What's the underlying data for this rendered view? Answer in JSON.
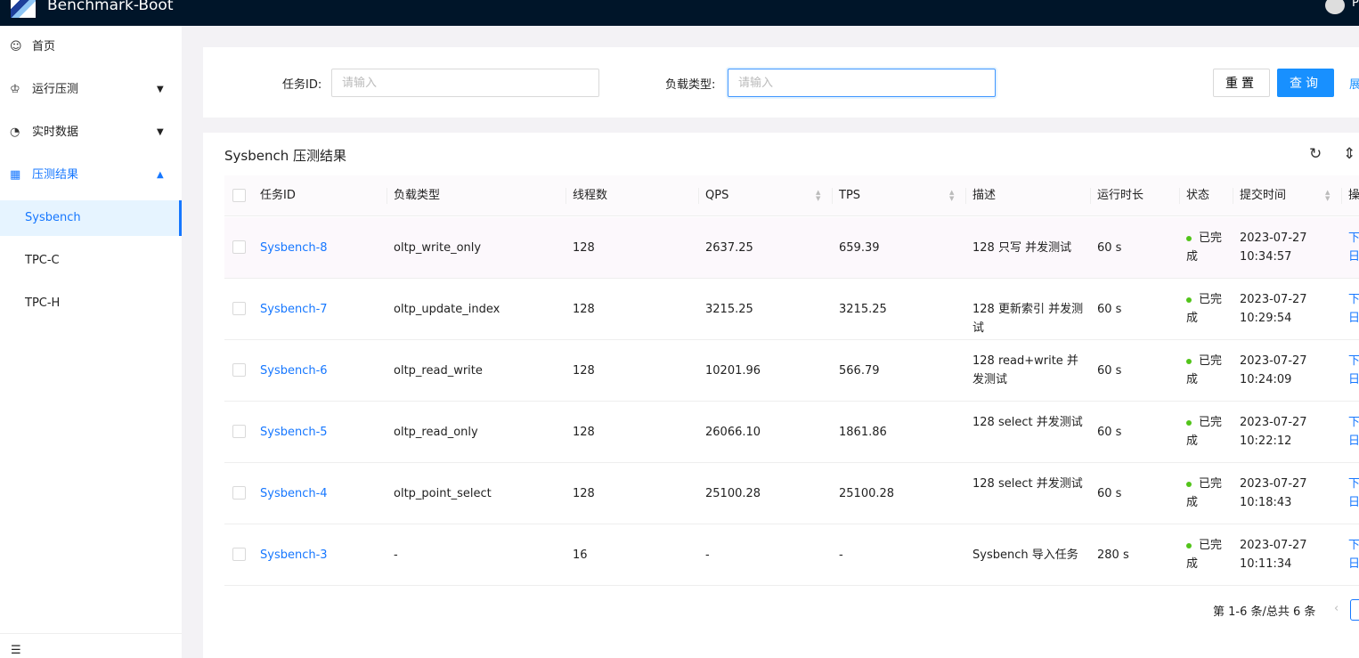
{
  "header": {
    "title": "Benchmark-Boot",
    "user_initial": "P"
  },
  "sidebar": {
    "items": [
      {
        "label": "首页",
        "icon": "smile-icon"
      },
      {
        "label": "运行压测",
        "icon": "crown-icon"
      },
      {
        "label": "实时数据",
        "icon": "dashboard-icon"
      },
      {
        "label": "压测结果",
        "icon": "table-icon"
      }
    ],
    "sub_items": [
      "Sysbench",
      "TPC-C",
      "TPC-H"
    ]
  },
  "search": {
    "task_id_label": "任务ID:",
    "task_id_placeholder": "请输入",
    "workload_label": "负载类型:",
    "workload_placeholder": "请输入",
    "reset": "重置",
    "query": "查询",
    "expand": "展"
  },
  "table": {
    "title": "Sysbench 压测结果",
    "columns": [
      "任务ID",
      "负载类型",
      "线程数",
      "QPS",
      "TPS",
      "描述",
      "运行时长",
      "状态",
      "提交时间",
      "操"
    ],
    "rows": [
      {
        "id": "Sysbench-8",
        "type": "oltp_write_only",
        "threads": "128",
        "qps": "2637.25",
        "tps": "659.39",
        "desc": "128 只写 并发测试",
        "runtime": "60 s",
        "status": "已完成",
        "date": "2023-07-27",
        "time": "10:34:57",
        "op1": "下",
        "op2": "日"
      },
      {
        "id": "Sysbench-7",
        "type": "oltp_update_index",
        "threads": "128",
        "qps": "3215.25",
        "tps": "3215.25",
        "desc": "128 更新索引 并发测试",
        "runtime": "60 s",
        "status": "已完成",
        "date": "2023-07-27",
        "time": "10:29:54",
        "op1": "下",
        "op2": "日"
      },
      {
        "id": "Sysbench-6",
        "type": "oltp_read_write",
        "threads": "128",
        "qps": "10201.96",
        "tps": "566.79",
        "desc": "128 read+write 并发测试",
        "runtime": "60 s",
        "status": "已完成",
        "date": "2023-07-27",
        "time": "10:24:09",
        "op1": "下",
        "op2": "日"
      },
      {
        "id": "Sysbench-5",
        "type": "oltp_read_only",
        "threads": "128",
        "qps": "26066.10",
        "tps": "1861.86",
        "desc": "128 select 并发测试",
        "runtime": "60 s",
        "status": "已完成",
        "date": "2023-07-27",
        "time": "10:22:12",
        "op1": "下",
        "op2": "日"
      },
      {
        "id": "Sysbench-4",
        "type": "oltp_point_select",
        "threads": "128",
        "qps": "25100.28",
        "tps": "25100.28",
        "desc": "128 select 并发测试",
        "runtime": "60 s",
        "status": "已完成",
        "date": "2023-07-27",
        "time": "10:18:43",
        "op1": "下",
        "op2": "日"
      },
      {
        "id": "Sysbench-3",
        "type": "-",
        "threads": "16",
        "qps": "-",
        "tps": "-",
        "desc": "Sysbench 导入任务",
        "runtime": "280 s",
        "status": "已完成",
        "date": "2023-07-27",
        "time": "10:11:34",
        "op1": "下",
        "op2": "日"
      }
    ],
    "pagination": "第 1-6 条/总共 6 条"
  },
  "colors": {
    "header_bg": "#001529",
    "primary": "#1677ff",
    "success": "#52c41a"
  }
}
